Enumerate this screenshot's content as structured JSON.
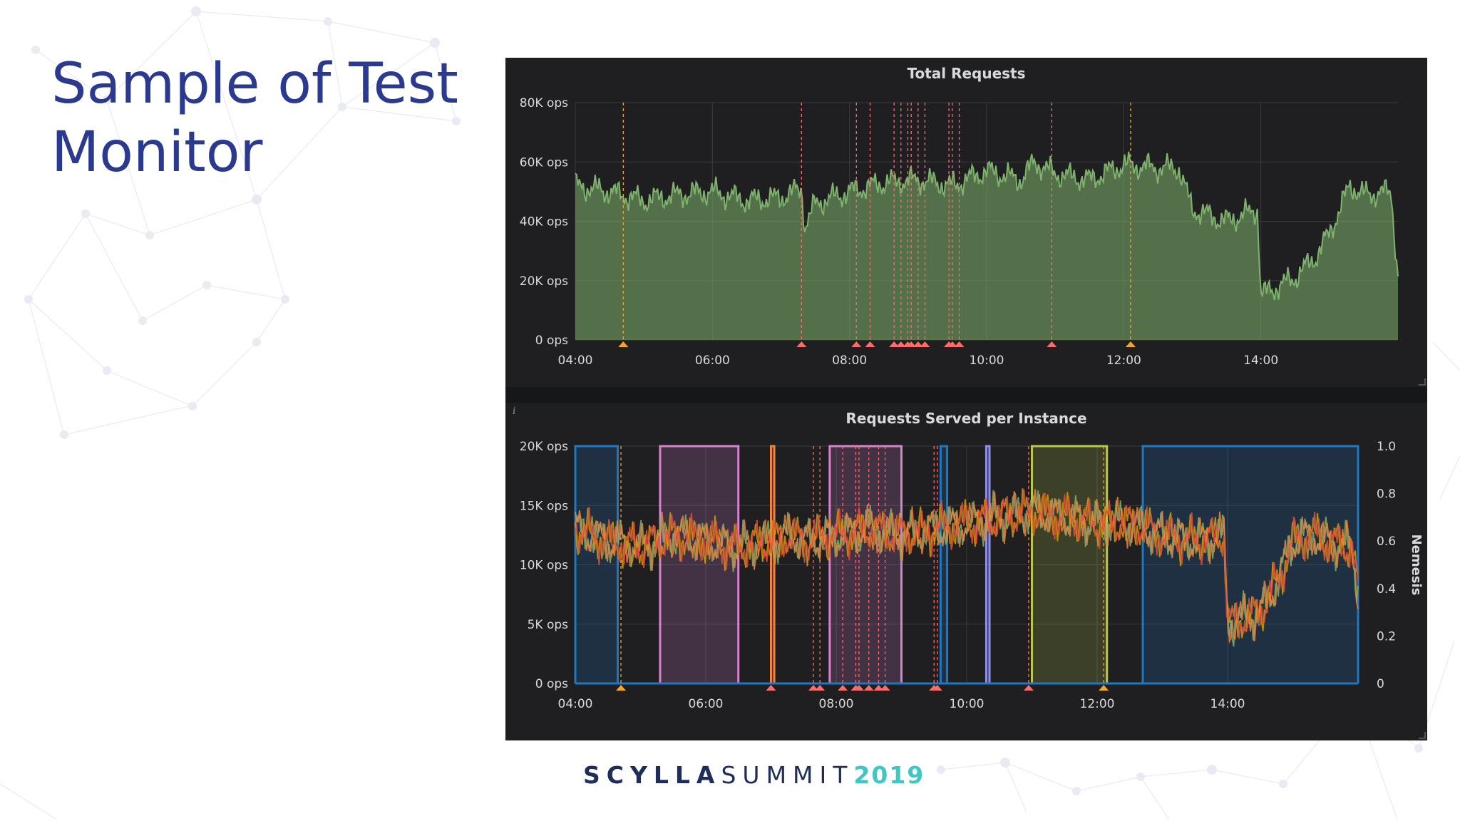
{
  "slide": {
    "title_line1": "Sample of Test",
    "title_line2": "Monitor"
  },
  "footer": {
    "brand": "SCYLLA",
    "event": "SUMMIT",
    "year": "2019"
  },
  "colors": {
    "title": "#2b3a8f",
    "panel_bg": "#1f1f21",
    "total_requests_line": "#7eb26d",
    "nemesis_blue": "#1f78c1",
    "nemesis_magenta": "#d683ce",
    "nemesis_orange": "#ef843c",
    "nemesis_green": "#b7c94a",
    "event_marker": "#ff6b6b",
    "footer_accent": "#3ec7c3"
  },
  "chart_data": [
    {
      "type": "area",
      "title": "Total Requests",
      "ylim": [
        0,
        80000
      ],
      "y_tick_labels": [
        "0 ops",
        "20K ops",
        "40K ops",
        "60K ops",
        "80K ops"
      ],
      "y_ticks": [
        0,
        20000,
        40000,
        60000,
        80000
      ],
      "xlim": [
        4.0,
        16.0
      ],
      "x_tick_labels": [
        "04:00",
        "06:00",
        "08:00",
        "10:00",
        "12:00",
        "14:00"
      ],
      "x_ticks": [
        4,
        6,
        8,
        10,
        12,
        14
      ],
      "grid": true,
      "series": [
        {
          "x": [
            4.0,
            4.5,
            5.0,
            5.5,
            6.0,
            6.5,
            7.0,
            7.3,
            7.35,
            7.5,
            8.0,
            8.5,
            9.0,
            9.5,
            10.0,
            10.5,
            10.7,
            11.0,
            11.5,
            12.0,
            12.5,
            12.8,
            13.0,
            13.5,
            13.95,
            14.0,
            14.5,
            14.8,
            15.0,
            15.3,
            15.5,
            15.9,
            16.0
          ],
          "y": [
            52000,
            50000,
            47000,
            49000,
            50000,
            47000,
            48000,
            51000,
            38000,
            46000,
            50000,
            53000,
            54000,
            52000,
            57000,
            54000,
            60000,
            56000,
            54000,
            59000,
            58000,
            58000,
            44000,
            40000,
            44000,
            15000,
            21000,
            28000,
            36000,
            52000,
            49000,
            50000,
            21000
          ]
        }
      ],
      "event_marker_x": [
        4.7,
        7.3,
        8.1,
        8.3,
        8.65,
        8.75,
        8.85,
        8.9,
        9.0,
        9.1,
        9.45,
        9.5,
        9.6,
        10.95,
        12.1
      ]
    },
    {
      "type": "line",
      "title": "Requests Served per Instance",
      "ylim": [
        0,
        20000
      ],
      "y_tick_labels": [
        "0 ops",
        "5K ops",
        "10K ops",
        "15K ops",
        "20K ops"
      ],
      "y_ticks": [
        0,
        5000,
        10000,
        15000,
        20000
      ],
      "y2_label": "Nemesis",
      "y2lim": [
        0,
        1.0
      ],
      "y2_tick_labels": [
        "0",
        "0.2",
        "0.4",
        "0.6",
        "0.8",
        "1.0"
      ],
      "y2_ticks": [
        0,
        0.2,
        0.4,
        0.6,
        0.8,
        1.0
      ],
      "xlim": [
        4.0,
        16.0
      ],
      "x_tick_labels": [
        "04:00",
        "06:00",
        "08:00",
        "10:00",
        "12:00",
        "14:00"
      ],
      "x_ticks": [
        4,
        6,
        8,
        10,
        12,
        14
      ],
      "grid": true,
      "series": [
        {
          "x": [
            4.0,
            4.5,
            5.0,
            5.5,
            6.0,
            6.5,
            7.0,
            7.3,
            7.5,
            8.0,
            8.5,
            9.0,
            9.5,
            10.0,
            10.5,
            11.0,
            11.5,
            12.0,
            12.5,
            13.0,
            13.5,
            13.95,
            14.0,
            14.5,
            14.8,
            15.0,
            15.3,
            15.5,
            15.9,
            16.0
          ],
          "y": [
            13000,
            12000,
            11500,
            12500,
            12000,
            11500,
            12000,
            12500,
            12000,
            12500,
            13000,
            12500,
            13000,
            13500,
            14000,
            14500,
            14000,
            13500,
            13500,
            12500,
            12000,
            12500,
            5000,
            6000,
            9000,
            12000,
            12500,
            12000,
            11500,
            8000
          ]
        }
      ],
      "nemesis_bands": [
        {
          "start": 4.0,
          "end": 4.65,
          "value": 1.0,
          "color": "#1f78c1"
        },
        {
          "start": 5.3,
          "end": 6.5,
          "value": 1.0,
          "color": "#d683ce"
        },
        {
          "start": 7.0,
          "end": 7.05,
          "value": 1.0,
          "color": "#ef843c"
        },
        {
          "start": 7.9,
          "end": 9.0,
          "value": 1.0,
          "color": "#d683ce"
        },
        {
          "start": 9.6,
          "end": 9.7,
          "value": 1.0,
          "color": "#1f78c1"
        },
        {
          "start": 10.3,
          "end": 10.35,
          "value": 1.0,
          "color": "#8f8fe8"
        },
        {
          "start": 11.0,
          "end": 12.15,
          "value": 1.0,
          "color": "#b7c94a"
        },
        {
          "start": 12.7,
          "end": 16.0,
          "value": 1.0,
          "color": "#1f78c1"
        }
      ],
      "event_marker_x": [
        4.7,
        7.0,
        7.65,
        7.75,
        8.1,
        8.3,
        8.35,
        8.5,
        8.65,
        8.75,
        9.5,
        9.55,
        10.95,
        12.1
      ]
    }
  ]
}
